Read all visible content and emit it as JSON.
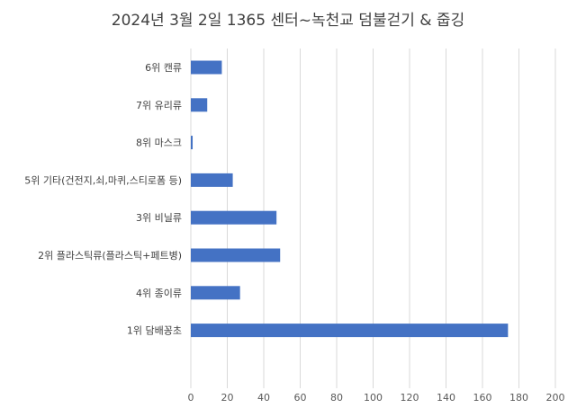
{
  "chart_data": {
    "type": "bar",
    "orientation": "horizontal",
    "title": "2024년 3월 2일 1365 센터~녹천교 덤불걷기 & 줍깅",
    "categories": [
      "6위 캔류",
      "7위 유리류",
      "8위 마스크",
      "5위 기타(건전지,쇠,마퀴,스티로폼 등)",
      "3위 비닐류",
      "2위 플라스틱류(플라스틱+페트병)",
      "4위 종이류",
      "1위 담배꽁초"
    ],
    "values": [
      17,
      9,
      1,
      23,
      47,
      49,
      27,
      174
    ],
    "xlim": [
      0,
      200
    ],
    "xticks": [
      "0",
      "20",
      "40",
      "60",
      "80",
      "100",
      "120",
      "140",
      "160",
      "180",
      "200"
    ],
    "grid": "vertical",
    "bar_color": "#4472c4",
    "legend": "none"
  }
}
